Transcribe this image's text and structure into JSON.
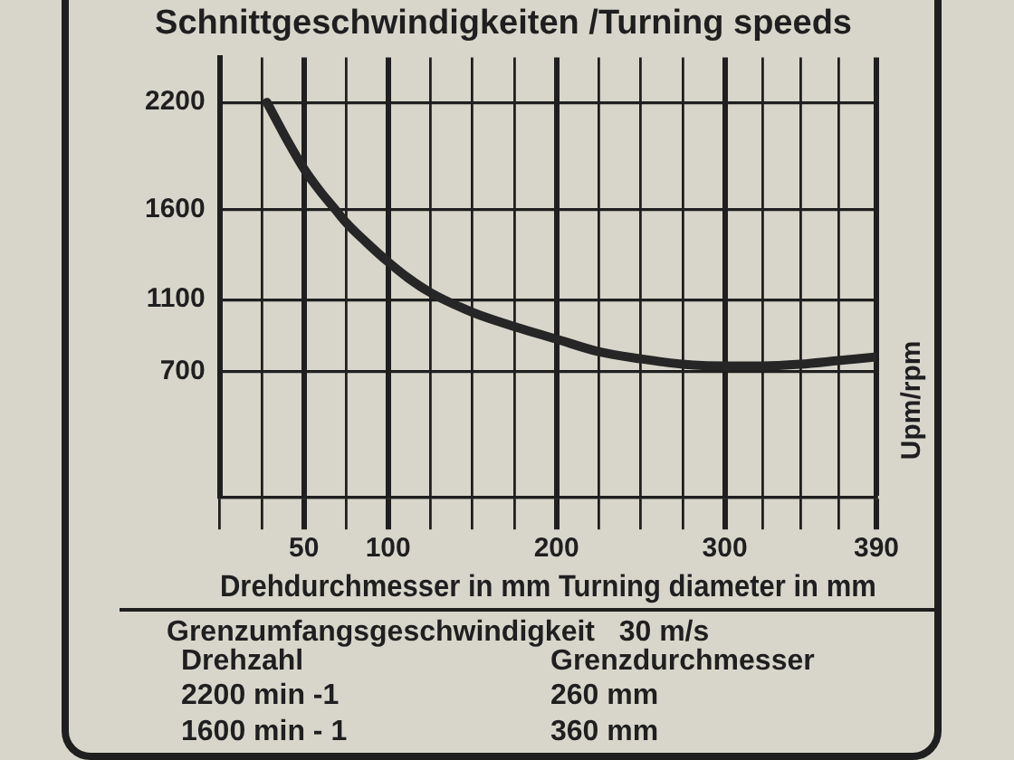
{
  "chart_data": {
    "type": "line",
    "title": "Schnittgeschwindigkeiten /Turning speeds",
    "xlabel": "Drehdurchmesser in mm Turning diameter in mm",
    "ylabel": "Upm/rpm",
    "x": [
      28,
      40,
      50,
      60,
      68,
      75,
      87,
      100,
      112,
      125,
      150,
      175,
      200,
      225,
      250,
      275,
      300,
      322.5,
      345,
      367.5,
      390
    ],
    "series": [
      {
        "color": "#262626",
        "values": [
          2200,
          1990,
          1830,
          1700,
          1610,
          1530,
          1420,
          1310,
          1220,
          1140,
          1030,
          950,
          880,
          810,
          770,
          740,
          730,
          730,
          740,
          760,
          780
        ]
      }
    ],
    "xlim": [
      0,
      390
    ],
    "xticks": [
      {
        "value": 0,
        "label": null
      },
      {
        "value": 25,
        "label": null
      },
      50,
      {
        "value": 75,
        "label": null
      },
      100,
      {
        "value": 125,
        "label": null
      },
      {
        "value": 150,
        "label": null
      },
      {
        "value": 175,
        "label": null
      },
      200,
      {
        "value": 225,
        "label": null
      },
      {
        "value": 250,
        "label": null
      },
      {
        "value": 275,
        "label": null
      },
      300,
      {
        "value": 322.5,
        "label": null
      },
      {
        "value": 345,
        "label": null
      },
      {
        "value": 367.5,
        "label": null
      },
      390
    ],
    "ylim": [
      0,
      2450
    ],
    "yticks": [
      {
        "value": 0,
        "label": null
      },
      700,
      1100,
      1600,
      2200
    ],
    "grid": true,
    "marker": "none",
    "annotations": [
      "Grenzumfangsgeschwindigkeit   30 m/s",
      "Drehzahl",
      "Grenzdurchmesser",
      "2200 min -1",
      "260 mm",
      "1600 min - 1",
      "360 mm"
    ]
  }
}
